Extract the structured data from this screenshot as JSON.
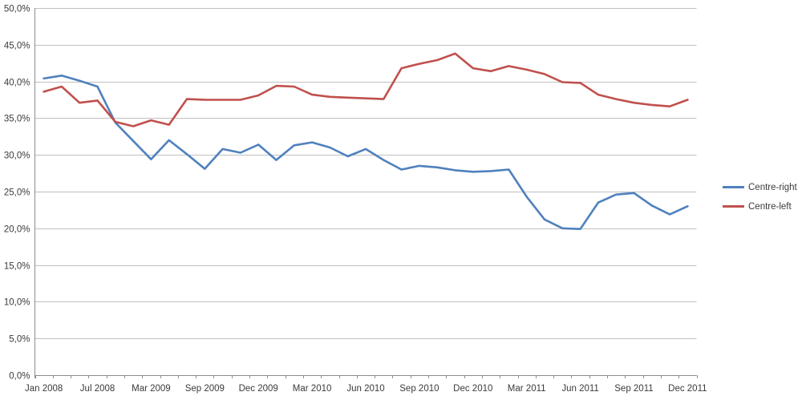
{
  "chart_data": {
    "type": "line",
    "title": "",
    "xlabel": "",
    "ylabel": "",
    "n_points": 37,
    "x_tick_labels": [
      "Jan 2008",
      "Jul 2008",
      "Mar 2009",
      "Sep 2009",
      "Dec 2009",
      "Mar 2010",
      "Jun 2010",
      "Sep 2010",
      "Dec 2010",
      "Mar 2011",
      "Jun 2011",
      "Sep 2011",
      "Dec 2011"
    ],
    "x_tick_label_indices": [
      0,
      3,
      6,
      9,
      12,
      15,
      18,
      21,
      24,
      27,
      30,
      33,
      36
    ],
    "y_axis": {
      "min": 0,
      "max": 50,
      "step": 5,
      "labels": [
        "0,0%",
        "5,0%",
        "10,0%",
        "15,0%",
        "20,0%",
        "25,0%",
        "30,0%",
        "35,0%",
        "40,0%",
        "45,0%",
        "50,0%"
      ]
    },
    "grid": "horizontal",
    "legend_position": "right",
    "series": [
      {
        "name": "Centre-right",
        "color": "#4F81BD",
        "values": [
          40.4,
          40.8,
          40.1,
          39.3,
          34.4,
          31.9,
          29.4,
          32.0,
          30.1,
          28.1,
          30.8,
          30.3,
          31.4,
          29.3,
          31.3,
          31.7,
          31.0,
          29.8,
          30.8,
          29.3,
          28.0,
          28.5,
          28.3,
          27.9,
          27.7,
          27.8,
          28.0,
          24.3,
          21.2,
          20.0,
          19.9,
          23.5,
          24.6,
          24.8,
          23.1,
          21.9,
          23.0
        ]
      },
      {
        "name": "Centre-left",
        "color": "#C0504D",
        "values": [
          38.6,
          39.3,
          37.1,
          37.4,
          34.5,
          33.9,
          34.7,
          34.1,
          37.6,
          37.5,
          37.5,
          37.5,
          38.1,
          39.4,
          39.3,
          38.2,
          37.9,
          37.8,
          37.7,
          37.6,
          41.8,
          42.4,
          42.9,
          43.8,
          41.8,
          41.4,
          42.1,
          41.6,
          41.0,
          39.9,
          39.8,
          38.2,
          37.6,
          37.1,
          36.8,
          36.6,
          37.5
        ]
      }
    ],
    "colors": {
      "gridline": "#C0C0C0",
      "axis": "#8C8C8C",
      "label_text": "#3b3b3b",
      "background": "#ffffff"
    }
  }
}
